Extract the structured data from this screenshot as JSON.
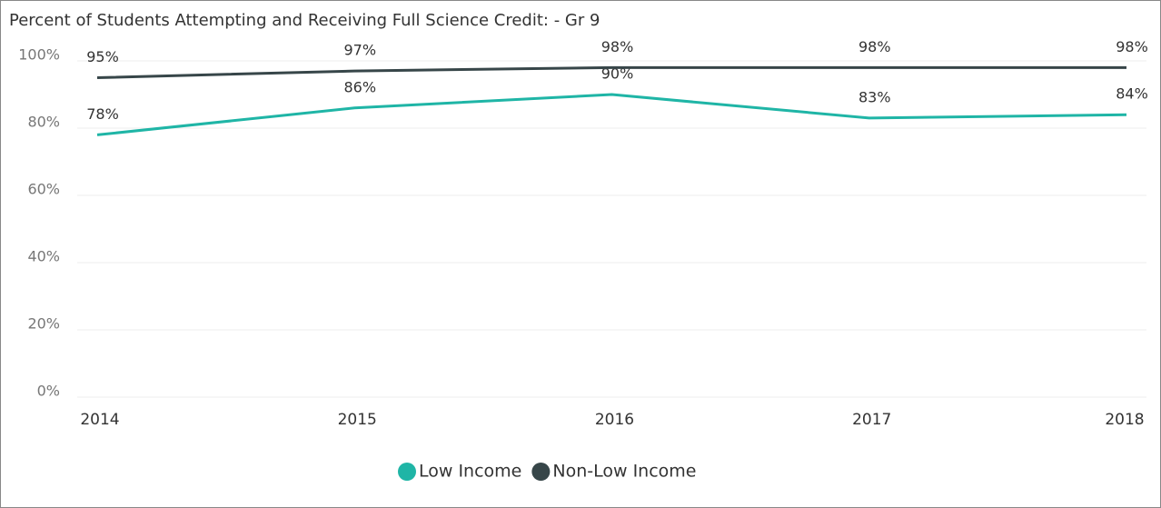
{
  "chart_data": {
    "type": "line",
    "title": "Percent of Students Attempting and Receiving Full Science Credit: - Gr 9",
    "categories": [
      "2014",
      "2015",
      "2016",
      "2017",
      "2018"
    ],
    "series": [
      {
        "name": "Low Income",
        "color": "#1fb5a6",
        "values": [
          78,
          86,
          90,
          83,
          84
        ],
        "value_labels": [
          "78%",
          "86%",
          "90%",
          "83%",
          "84%"
        ]
      },
      {
        "name": "Non-Low Income",
        "color": "#374649",
        "values": [
          95,
          97,
          98,
          98,
          98
        ],
        "value_labels": [
          "95%",
          "97%",
          "98%",
          "98%",
          "98%"
        ]
      }
    ],
    "ylim": [
      0,
      100
    ],
    "yticks": [
      {
        "value": 0,
        "label": "0%"
      },
      {
        "value": 20,
        "label": "20%"
      },
      {
        "value": 40,
        "label": "40%"
      },
      {
        "value": 60,
        "label": "60%"
      },
      {
        "value": 80,
        "label": "80%"
      },
      {
        "value": 100,
        "label": "100%"
      }
    ],
    "grid": true,
    "legend": "bottom"
  }
}
